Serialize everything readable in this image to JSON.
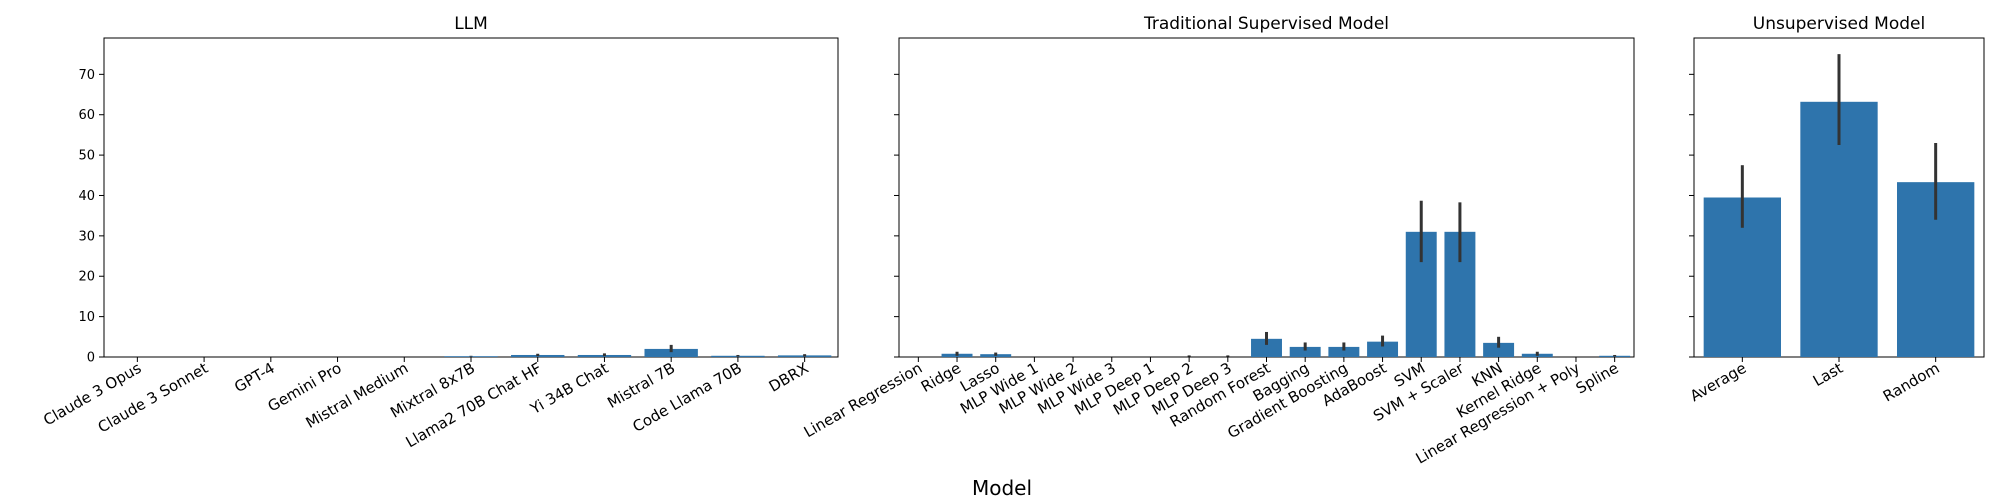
{
  "chart_data": {
    "type": "bar",
    "xlabel": "Model",
    "ylabel": "",
    "ylim": [
      0,
      79
    ],
    "yticks": [
      "0",
      "10",
      "20",
      "30",
      "40",
      "50",
      "60",
      "70"
    ],
    "color": "#2e74ac",
    "error_color": "#333333",
    "panels": [
      {
        "title": "LLM",
        "categories": [
          "Claude 3 Opus",
          "Claude 3 Sonnet",
          "GPT-4",
          "Gemini Pro",
          "Mistral Medium",
          "Mixtral 8x7B",
          "Llama2 70B Chat HF",
          "Yi 34B Chat",
          "Mistral 7B",
          "Code Llama 70B",
          "DBRX"
        ],
        "values": [
          0,
          0,
          0,
          0,
          0,
          0.2,
          0.5,
          0.5,
          2.0,
          0.3,
          0.4
        ],
        "errors": [
          [
            0,
            0
          ],
          [
            0,
            0
          ],
          [
            0,
            0
          ],
          [
            0,
            0
          ],
          [
            0,
            0
          ],
          [
            0.1,
            0.3
          ],
          [
            0.2,
            0.8
          ],
          [
            0.2,
            0.9
          ],
          [
            1.2,
            3.0
          ],
          [
            0.1,
            0.5
          ],
          [
            0.1,
            0.7
          ]
        ]
      },
      {
        "title": "Traditional Supervised Model",
        "categories": [
          "Linear Regression",
          "Ridge",
          "Lasso",
          "MLP Wide 1",
          "MLP Wide 2",
          "MLP Wide 3",
          "MLP Deep 1",
          "MLP Deep 2",
          "MLP Deep 3",
          "Random Forest",
          "Bagging",
          "Gradient Boosting",
          "AdaBoost",
          "SVM",
          "SVM + Scaler",
          "KNN",
          "Kernel Ridge",
          "Linear Regression + Poly",
          "Spline"
        ],
        "values": [
          0,
          0.8,
          0.7,
          0,
          0,
          0,
          0,
          0,
          0,
          4.5,
          2.5,
          2.5,
          3.8,
          31.0,
          31.0,
          3.5,
          0.8,
          0,
          0.3
        ],
        "errors": [
          [
            0,
            0
          ],
          [
            0.3,
            1.3
          ],
          [
            0.3,
            1.1
          ],
          [
            0,
            0
          ],
          [
            0,
            0
          ],
          [
            0,
            0
          ],
          [
            0,
            0
          ],
          [
            0.1,
            0.4
          ],
          [
            0.1,
            0.4
          ],
          [
            3.0,
            6.2
          ],
          [
            1.6,
            3.6
          ],
          [
            1.6,
            3.6
          ],
          [
            2.6,
            5.3
          ],
          [
            23.5,
            38.7
          ],
          [
            23.5,
            38.3
          ],
          [
            2.3,
            5.0
          ],
          [
            0.3,
            1.3
          ],
          [
            0,
            0
          ],
          [
            0.1,
            0.5
          ]
        ]
      },
      {
        "title": "Unsupervised Model",
        "categories": [
          "Average",
          "Last",
          "Random"
        ],
        "values": [
          39.5,
          63.2,
          43.3
        ],
        "errors": [
          [
            32.0,
            47.5
          ],
          [
            52.5,
            75.0
          ],
          [
            34.0,
            53.0
          ]
        ]
      }
    ]
  }
}
